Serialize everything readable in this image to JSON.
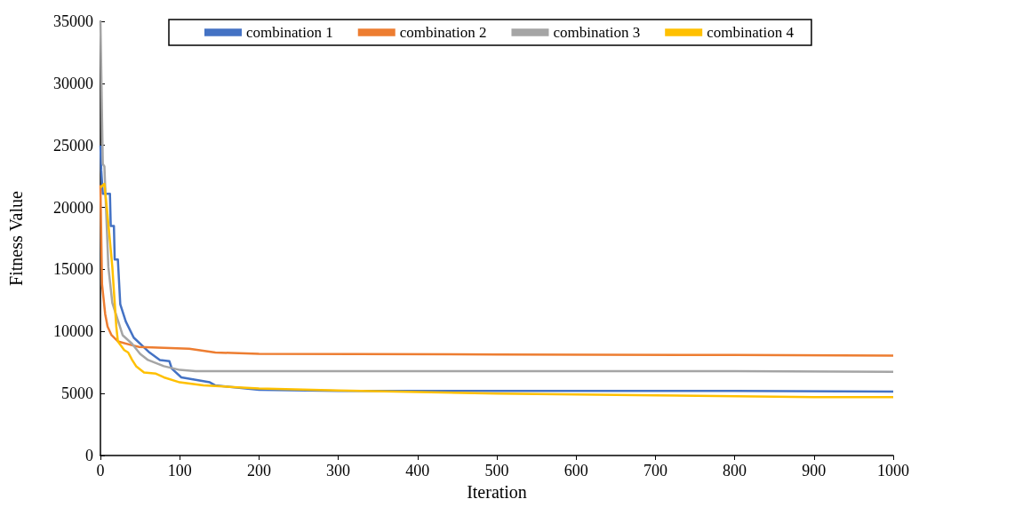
{
  "chart_data": {
    "type": "line",
    "xlabel": "Iteration",
    "ylabel": "Fitness Value",
    "xlim": [
      0,
      1000
    ],
    "xticks": [
      0,
      100,
      200,
      300,
      400,
      500,
      600,
      700,
      800,
      900,
      1000
    ],
    "ylim": [
      0,
      35000
    ],
    "yticks": [
      0,
      5000,
      10000,
      15000,
      20000,
      25000,
      30000,
      35000
    ],
    "grid": false,
    "legend": "top",
    "marker": "none",
    "line_style": "solid",
    "series": [
      {
        "name": "combination 1",
        "color": "#4472c4",
        "x": [
          0,
          1,
          3,
          12,
          13,
          17,
          18,
          22,
          25,
          32,
          42,
          62,
          75,
          87,
          90,
          102,
          138,
          145,
          200,
          300,
          500,
          800,
          1000
        ],
        "values": [
          25000,
          23000,
          21100,
          21100,
          18500,
          18500,
          15800,
          15800,
          12200,
          10800,
          9500,
          8300,
          7700,
          7600,
          7000,
          6300,
          5900,
          5650,
          5300,
          5200,
          5200,
          5200,
          5150
        ]
      },
      {
        "name": "combination 2",
        "color": "#ed7d31",
        "x": [
          0,
          2,
          6,
          9,
          14,
          22,
          39,
          49,
          112,
          145,
          200,
          500,
          800,
          1000
        ],
        "values": [
          21800,
          13800,
          11400,
          10400,
          9700,
          9200,
          8900,
          8750,
          8600,
          8300,
          8200,
          8150,
          8100,
          8050
        ]
      },
      {
        "name": "combination 3",
        "color": "#a5a5a5",
        "x": [
          0,
          3,
          5,
          10,
          15,
          22,
          28,
          40,
          50,
          60,
          80,
          100,
          120,
          500,
          800,
          1000
        ],
        "values": [
          35000,
          23500,
          23300,
          15200,
          12300,
          10900,
          9700,
          9000,
          8200,
          7700,
          7200,
          6900,
          6800,
          6800,
          6800,
          6750
        ]
      },
      {
        "name": "combination 4",
        "color": "#ffc000",
        "x": [
          0,
          5,
          8,
          12,
          15,
          18,
          20,
          22,
          30,
          35,
          40,
          45,
          55,
          70,
          80,
          100,
          130,
          200,
          300,
          500,
          700,
          900,
          1000
        ],
        "values": [
          21600,
          21900,
          20000,
          17300,
          15200,
          12300,
          10400,
          9200,
          8500,
          8300,
          7700,
          7200,
          6700,
          6600,
          6300,
          5900,
          5650,
          5400,
          5250,
          5000,
          4850,
          4700,
          4700
        ]
      }
    ]
  }
}
